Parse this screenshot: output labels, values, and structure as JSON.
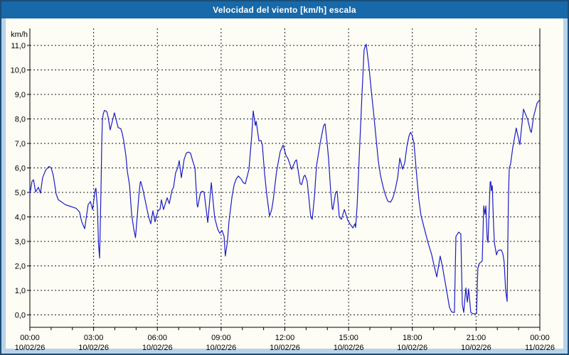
{
  "window": {
    "title": "Velocidad del viento [km/h] escala"
  },
  "chart_data": {
    "type": "line",
    "title": "Velocidad del viento [km/h] escala",
    "ylabel": "km/h",
    "ylim": [
      0,
      11
    ],
    "xlim_hours": [
      0,
      24
    ],
    "grid": true,
    "legend_position": "none",
    "y_tick_labels": [
      "0,0",
      "1,0",
      "2,0",
      "3,0",
      "4,0",
      "5,0",
      "6,0",
      "7,0",
      "8,0",
      "9,0",
      "10,0",
      "11,0"
    ],
    "x_ticks": [
      {
        "hour": 0,
        "time": "00:00",
        "date": "10/02/26"
      },
      {
        "hour": 3,
        "time": "03:00",
        "date": "10/02/26"
      },
      {
        "hour": 6,
        "time": "06:00",
        "date": "10/02/26"
      },
      {
        "hour": 9,
        "time": "09:00",
        "date": "10/02/26"
      },
      {
        "hour": 12,
        "time": "12:00",
        "date": "10/02/26"
      },
      {
        "hour": 15,
        "time": "15:00",
        "date": "10/02/26"
      },
      {
        "hour": 18,
        "time": "18:00",
        "date": "10/02/26"
      },
      {
        "hour": 21,
        "time": "21:00",
        "date": "10/02/26"
      },
      {
        "hour": 24,
        "time": "00:00",
        "date": "11/02/26"
      }
    ],
    "colors": {
      "line": "#1b1bcb",
      "grid": "#1a1a1a",
      "axis": "#000000",
      "titlebar_bg": "#1769a9",
      "frame_bg": "#b9d2e8",
      "plot_bg": "#fdfdf5",
      "border": "#1a4e78"
    },
    "series": [
      {
        "name": "velocidad-del-viento-kmh",
        "points": [
          [
            0.0,
            4.93
          ],
          [
            0.1,
            5.45
          ],
          [
            0.17,
            5.52
          ],
          [
            0.27,
            5.02
          ],
          [
            0.4,
            5.21
          ],
          [
            0.5,
            4.97
          ],
          [
            0.6,
            5.6
          ],
          [
            0.74,
            5.9
          ],
          [
            0.9,
            6.06
          ],
          [
            1.0,
            6.0
          ],
          [
            1.1,
            5.7
          ],
          [
            1.24,
            4.93
          ],
          [
            1.34,
            4.7
          ],
          [
            1.51,
            4.6
          ],
          [
            1.67,
            4.5
          ],
          [
            1.84,
            4.45
          ],
          [
            2.01,
            4.4
          ],
          [
            2.18,
            4.35
          ],
          [
            2.34,
            4.2
          ],
          [
            2.44,
            3.8
          ],
          [
            2.58,
            3.52
          ],
          [
            2.74,
            4.5
          ],
          [
            2.85,
            4.63
          ],
          [
            2.95,
            4.3
          ],
          [
            3.08,
            5.12
          ],
          [
            3.11,
            5.17
          ],
          [
            3.18,
            4.35
          ],
          [
            3.23,
            2.9
          ],
          [
            3.28,
            2.32
          ],
          [
            3.31,
            3.5
          ],
          [
            3.35,
            5.3
          ],
          [
            3.38,
            6.9
          ],
          [
            3.41,
            7.9
          ],
          [
            3.45,
            8.2
          ],
          [
            3.51,
            8.35
          ],
          [
            3.62,
            8.3
          ],
          [
            3.68,
            8.1
          ],
          [
            3.78,
            7.55
          ],
          [
            3.88,
            7.9
          ],
          [
            3.98,
            8.25
          ],
          [
            4.08,
            7.9
          ],
          [
            4.15,
            7.65
          ],
          [
            4.28,
            7.6
          ],
          [
            4.35,
            7.4
          ],
          [
            4.42,
            7.1
          ],
          [
            4.52,
            6.5
          ],
          [
            4.59,
            5.85
          ],
          [
            4.69,
            5.3
          ],
          [
            4.79,
            4.1
          ],
          [
            4.89,
            3.5
          ],
          [
            4.97,
            3.15
          ],
          [
            5.05,
            4.0
          ],
          [
            5.12,
            4.8
          ],
          [
            5.19,
            5.4
          ],
          [
            5.22,
            5.45
          ],
          [
            5.32,
            5.12
          ],
          [
            5.46,
            4.54
          ],
          [
            5.59,
            4.0
          ],
          [
            5.69,
            3.72
          ],
          [
            5.79,
            4.25
          ],
          [
            5.89,
            3.8
          ],
          [
            6.03,
            4.25
          ],
          [
            6.13,
            4.32
          ],
          [
            6.19,
            4.7
          ],
          [
            6.29,
            4.3
          ],
          [
            6.46,
            4.78
          ],
          [
            6.56,
            4.54
          ],
          [
            6.69,
            5.1
          ],
          [
            6.76,
            5.21
          ],
          [
            6.86,
            5.8
          ],
          [
            6.96,
            6.0
          ],
          [
            7.03,
            6.3
          ],
          [
            7.13,
            5.6
          ],
          [
            7.26,
            6.35
          ],
          [
            7.36,
            6.6
          ],
          [
            7.46,
            6.65
          ],
          [
            7.56,
            6.6
          ],
          [
            7.66,
            6.3
          ],
          [
            7.77,
            6.0
          ],
          [
            7.87,
            4.5
          ],
          [
            7.9,
            4.4
          ],
          [
            8.03,
            5.0
          ],
          [
            8.13,
            5.05
          ],
          [
            8.2,
            5.0
          ],
          [
            8.37,
            3.77
          ],
          [
            8.54,
            5.4
          ],
          [
            8.7,
            3.96
          ],
          [
            8.84,
            3.5
          ],
          [
            8.94,
            3.33
          ],
          [
            9.04,
            3.45
          ],
          [
            9.14,
            3.2
          ],
          [
            9.2,
            2.4
          ],
          [
            9.3,
            3.0
          ],
          [
            9.37,
            3.8
          ],
          [
            9.51,
            4.8
          ],
          [
            9.61,
            5.3
          ],
          [
            9.71,
            5.55
          ],
          [
            9.81,
            5.67
          ],
          [
            9.94,
            5.55
          ],
          [
            10.04,
            5.4
          ],
          [
            10.14,
            5.35
          ],
          [
            10.31,
            5.94
          ],
          [
            10.44,
            7.3
          ],
          [
            10.51,
            8.33
          ],
          [
            10.61,
            7.73
          ],
          [
            10.65,
            7.9
          ],
          [
            10.78,
            7.1
          ],
          [
            10.88,
            7.12
          ],
          [
            10.94,
            6.95
          ],
          [
            11.04,
            5.84
          ],
          [
            11.14,
            4.97
          ],
          [
            11.28,
            4.03
          ],
          [
            11.38,
            4.3
          ],
          [
            11.45,
            4.68
          ],
          [
            11.61,
            5.84
          ],
          [
            11.78,
            6.66
          ],
          [
            11.92,
            6.93
          ],
          [
            12.05,
            6.52
          ],
          [
            12.15,
            6.37
          ],
          [
            12.32,
            5.94
          ],
          [
            12.49,
            6.28
          ],
          [
            12.55,
            6.33
          ],
          [
            12.72,
            5.36
          ],
          [
            12.79,
            5.32
          ],
          [
            12.89,
            5.65
          ],
          [
            12.95,
            5.7
          ],
          [
            13.05,
            5.45
          ],
          [
            13.22,
            4.0
          ],
          [
            13.29,
            3.9
          ],
          [
            13.39,
            4.8
          ],
          [
            13.49,
            6.08
          ],
          [
            13.66,
            7.0
          ],
          [
            13.82,
            7.72
          ],
          [
            13.89,
            7.8
          ],
          [
            13.99,
            7.0
          ],
          [
            14.06,
            6.37
          ],
          [
            14.16,
            5.03
          ],
          [
            14.23,
            4.34
          ],
          [
            14.26,
            4.3
          ],
          [
            14.39,
            5.0
          ],
          [
            14.46,
            5.05
          ],
          [
            14.56,
            4.0
          ],
          [
            14.66,
            3.9
          ],
          [
            14.8,
            4.3
          ],
          [
            14.96,
            3.87
          ],
          [
            15.06,
            3.72
          ],
          [
            15.2,
            3.55
          ],
          [
            15.3,
            3.72
          ],
          [
            15.33,
            3.57
          ],
          [
            15.4,
            4.45
          ],
          [
            15.5,
            6.47
          ],
          [
            15.63,
            8.97
          ],
          [
            15.73,
            10.82
          ],
          [
            15.8,
            11.0
          ],
          [
            15.83,
            11.05
          ],
          [
            15.97,
            10.04
          ],
          [
            16.07,
            9.12
          ],
          [
            16.17,
            8.3
          ],
          [
            16.3,
            7.14
          ],
          [
            16.4,
            6.28
          ],
          [
            16.5,
            5.7
          ],
          [
            16.64,
            5.17
          ],
          [
            16.74,
            4.88
          ],
          [
            16.84,
            4.65
          ],
          [
            16.97,
            4.6
          ],
          [
            17.07,
            4.75
          ],
          [
            17.17,
            5.03
          ],
          [
            17.31,
            5.6
          ],
          [
            17.41,
            6.4
          ],
          [
            17.54,
            5.95
          ],
          [
            17.64,
            6.2
          ],
          [
            17.74,
            6.86
          ],
          [
            17.84,
            7.3
          ],
          [
            17.91,
            7.45
          ],
          [
            17.98,
            7.35
          ],
          [
            18.08,
            7.0
          ],
          [
            18.18,
            5.94
          ],
          [
            18.31,
            4.68
          ],
          [
            18.41,
            4.05
          ],
          [
            18.58,
            3.47
          ],
          [
            18.74,
            2.94
          ],
          [
            18.91,
            2.46
          ],
          [
            19.01,
            2.07
          ],
          [
            19.15,
            1.55
          ],
          [
            19.31,
            2.4
          ],
          [
            19.41,
            2.0
          ],
          [
            19.58,
            1.15
          ],
          [
            19.75,
            0.3
          ],
          [
            19.85,
            0.12
          ],
          [
            19.98,
            0.1
          ],
          [
            20.05,
            3.2
          ],
          [
            20.18,
            3.38
          ],
          [
            20.28,
            3.3
          ],
          [
            20.35,
            0.43
          ],
          [
            20.42,
            0.1
          ],
          [
            20.52,
            1.1
          ],
          [
            20.59,
            0.52
          ],
          [
            20.65,
            1.06
          ],
          [
            20.75,
            0.1
          ],
          [
            20.85,
            0.05
          ],
          [
            21.02,
            0.05
          ],
          [
            21.08,
            1.9
          ],
          [
            21.15,
            2.1
          ],
          [
            21.29,
            2.2
          ],
          [
            21.36,
            4.45
          ],
          [
            21.42,
            4.1
          ],
          [
            21.46,
            4.45
          ],
          [
            21.52,
            3.14
          ],
          [
            21.56,
            2.95
          ],
          [
            21.66,
            5.4
          ],
          [
            21.69,
            5.45
          ],
          [
            21.72,
            5.07
          ],
          [
            21.76,
            5.28
          ],
          [
            21.82,
            3.72
          ],
          [
            21.86,
            2.94
          ],
          [
            21.96,
            2.45
          ],
          [
            22.02,
            2.6
          ],
          [
            22.09,
            2.65
          ],
          [
            22.19,
            2.65
          ],
          [
            22.26,
            2.5
          ],
          [
            22.32,
            2.17
          ],
          [
            22.39,
            1.0
          ],
          [
            22.46,
            0.55
          ],
          [
            22.52,
            4.7
          ],
          [
            22.56,
            6.0
          ],
          [
            22.62,
            6.15
          ],
          [
            22.72,
            6.8
          ],
          [
            22.89,
            7.63
          ],
          [
            23.06,
            6.95
          ],
          [
            23.23,
            8.4
          ],
          [
            23.43,
            7.97
          ],
          [
            23.56,
            7.5
          ],
          [
            23.6,
            7.45
          ],
          [
            23.7,
            8.06
          ],
          [
            23.87,
            8.64
          ],
          [
            23.97,
            8.75
          ]
        ]
      }
    ]
  }
}
